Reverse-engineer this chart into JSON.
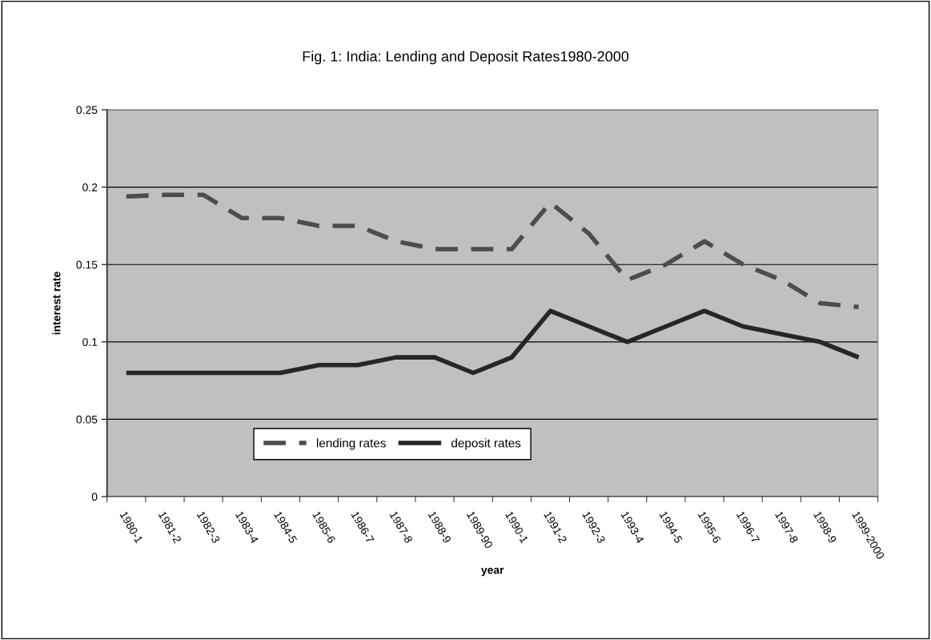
{
  "chart_data": {
    "type": "line",
    "title": "Fig. 1: India: Lending and Deposit Rates1980-2000",
    "xlabel": "year",
    "ylabel": "interest rate",
    "categories": [
      "1980-1",
      "1981-2",
      "1982-3",
      "1983-4",
      "1984-5",
      "1985-6",
      "1986-7",
      "1987-8",
      "1988-9",
      "1989-90",
      "1990-1",
      "1991-2",
      "1992-3",
      "1993-4",
      "1994-5",
      "1995-6",
      "1996-7",
      "1997-8",
      "1998-9",
      "1999-2000"
    ],
    "series": [
      {
        "name": "lending rates",
        "color": "#4d4d4d",
        "line_style": "dashed",
        "values": [
          0.194,
          0.195,
          0.195,
          0.18,
          0.18,
          0.175,
          0.175,
          0.165,
          0.16,
          0.16,
          0.16,
          0.19,
          0.17,
          0.14,
          0.15,
          0.165,
          0.15,
          0.14,
          0.125,
          0.1225
        ]
      },
      {
        "name": "deposit rates",
        "color": "#262626",
        "line_style": "solid",
        "values": [
          0.08,
          0.08,
          0.08,
          0.08,
          0.08,
          0.085,
          0.085,
          0.09,
          0.09,
          0.08,
          0.09,
          0.12,
          0.11,
          0.1,
          0.11,
          0.12,
          0.11,
          0.105,
          0.1,
          0.09
        ]
      }
    ],
    "ylim": [
      0,
      0.25
    ],
    "yticks": [
      0,
      0.05,
      0.1,
      0.15,
      0.2,
      0.25
    ],
    "grid": "y",
    "legend": "bottom",
    "marker": "none"
  }
}
